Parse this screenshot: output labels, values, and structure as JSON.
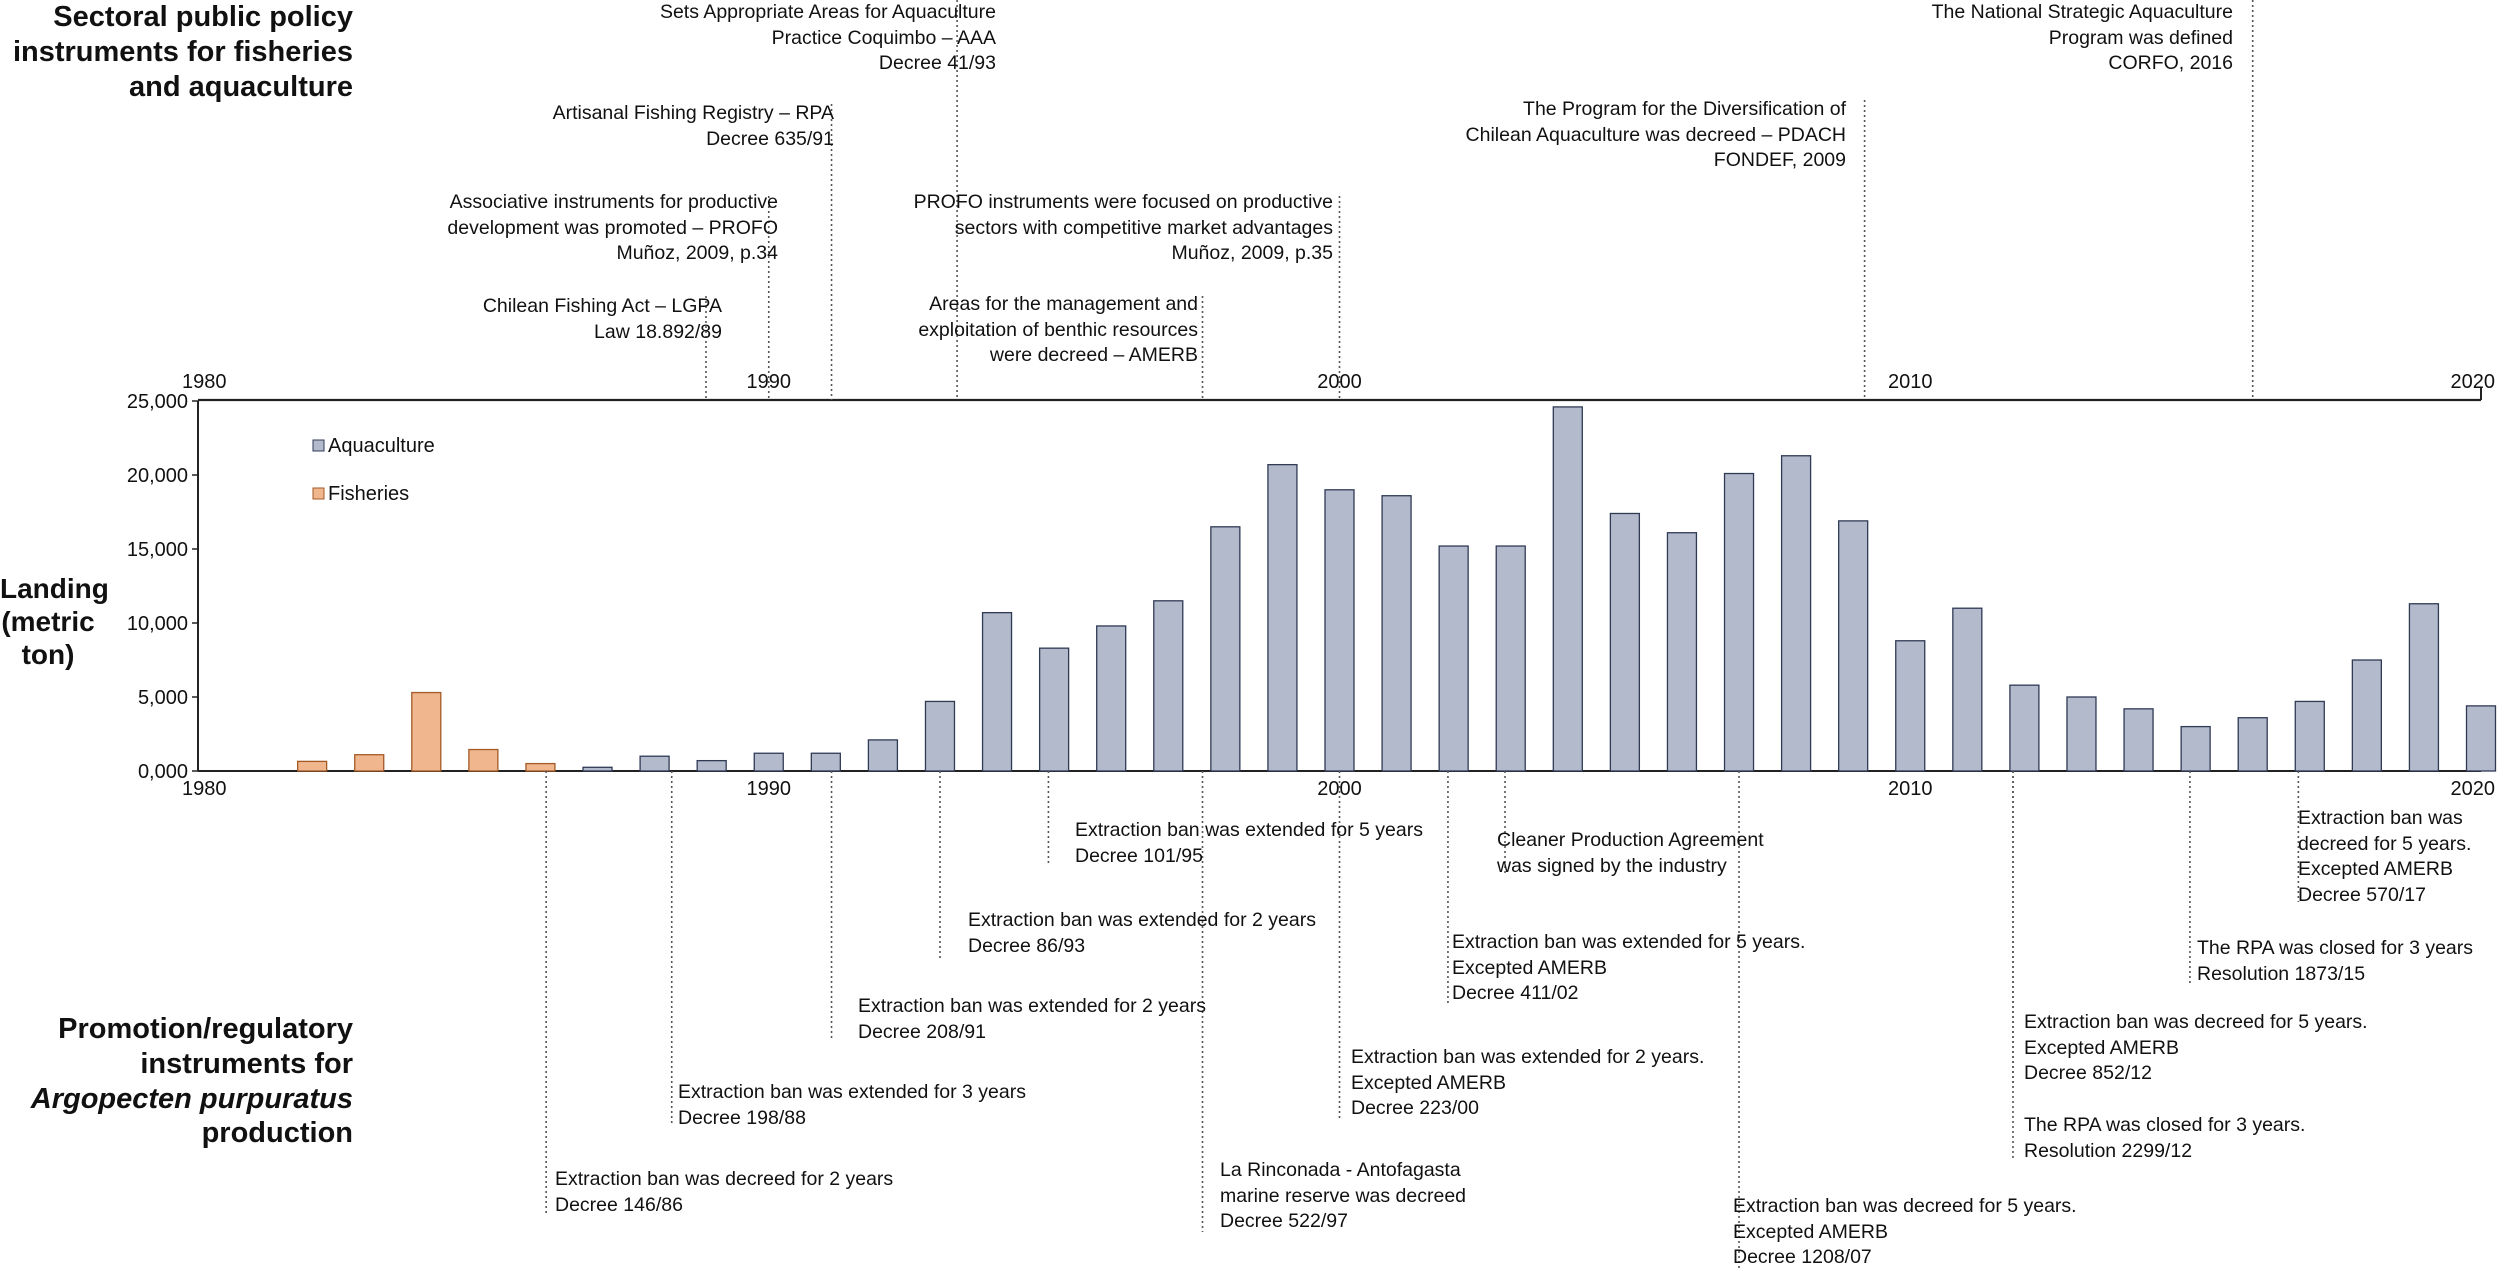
{
  "titles": {
    "top": [
      "Sectoral public policy",
      "instruments for fisheries",
      "and aquaculture"
    ],
    "bottom_lines": [
      "Promotion/regulatory",
      "instruments for"
    ],
    "bottom_italic": "Argopecten purpuratus",
    "bottom_last": "production"
  },
  "chart_data": {
    "type": "bar",
    "title": "",
    "xlabel": "",
    "ylabel": "Landing (metric ton)",
    "ylabel_lines": [
      "Landing",
      "(metric",
      "ton)"
    ],
    "xlim": [
      1980,
      2020
    ],
    "ylim": [
      0,
      25000
    ],
    "yticks": [
      "0,000",
      "5,000",
      "10,000",
      "15,000",
      "20,000",
      "25,000"
    ],
    "xticks": [
      "1980",
      "1990",
      "2000",
      "2010",
      "2020"
    ],
    "legend_position": "top-left",
    "series": [
      {
        "name": "Aquaculture",
        "color": "#b3bacb",
        "x": [
          1987,
          1988,
          1989,
          1990,
          1991,
          1992,
          1993,
          1994,
          1995,
          1996,
          1997,
          1998,
          1999,
          2000,
          2001,
          2002,
          2003,
          2004,
          2005,
          2006,
          2007,
          2008,
          2009,
          2010,
          2011,
          2012,
          2013,
          2014,
          2015,
          2016,
          2017,
          2018,
          2019,
          2020
        ],
        "values": [
          250,
          1000,
          700,
          1200,
          1200,
          2100,
          4700,
          10700,
          8300,
          9800,
          11500,
          16500,
          20700,
          19000,
          18600,
          15200,
          15200,
          24600,
          17400,
          16100,
          20100,
          21300,
          16900,
          8800,
          11000,
          5800,
          5000,
          4200,
          3000,
          3600,
          4700,
          7500,
          11300,
          4400
        ]
      },
      {
        "name": "Fisheries",
        "color": "#f0b68e",
        "x": [
          1982,
          1983,
          1984,
          1985,
          1986
        ],
        "values": [
          650,
          1100,
          5300,
          1450,
          500
        ]
      }
    ]
  },
  "top_annotations": [
    {
      "lines": [
        "Chilean Fishing Act – LGPA",
        "Law 18.892/89"
      ]
    },
    {
      "lines": [
        "Associative instruments for productive",
        "development was promoted – PROFO",
        "Muñoz, 2009, p.34"
      ]
    },
    {
      "lines": [
        "Artisanal Fishing Registry – RPA",
        "Decree 635/91"
      ]
    },
    {
      "lines": [
        "Sets Appropriate Areas for Aquaculture",
        "Practice Coquimbo – AAA",
        "Decree 41/93"
      ]
    },
    {
      "lines": [
        "Areas for the management and",
        "exploitation of benthic resources",
        "were decreed – AMERB"
      ]
    },
    {
      "lines": [
        "PROFO instruments were focused on productive",
        "sectors with competitive market advantages",
        "Muñoz, 2009, p.35"
      ]
    },
    {
      "lines": [
        "The Program for the Diversification of",
        "Chilean Aquaculture was decreed – PDACH",
        "FONDEF, 2009"
      ]
    },
    {
      "lines": [
        "The National Strategic Aquaculture",
        "Program was defined",
        "CORFO, 2016"
      ]
    }
  ],
  "bottom_annotations": [
    {
      "lines": [
        "Extraction ban was decreed for 2 years",
        "Decree 146/86"
      ]
    },
    {
      "lines": [
        "Extraction ban was extended for 3 years",
        "Decree 198/88"
      ]
    },
    {
      "lines": [
        "Extraction ban was extended for 2 years",
        "Decree 208/91"
      ]
    },
    {
      "lines": [
        "Extraction ban was extended for 2 years",
        "Decree 86/93"
      ]
    },
    {
      "lines": [
        "Extraction ban was extended for 5 years",
        "Decree 101/95"
      ]
    },
    {
      "lines": [
        "La Rinconada - Antofagasta",
        "marine reserve was decreed",
        "Decree 522/97"
      ]
    },
    {
      "lines": [
        "Extraction ban was extended for 2 years.",
        "Excepted AMERB",
        "Decree 223/00"
      ]
    },
    {
      "lines": [
        "Extraction ban was extended for 5 years.",
        "Excepted AMERB",
        "Decree 411/02"
      ]
    },
    {
      "lines": [
        "Cleaner Production Agreement",
        "was signed by the industry"
      ]
    },
    {
      "lines": [
        "Extraction ban was decreed for 5 years.",
        "Excepted AMERB",
        "Decree 1208/07"
      ]
    },
    {
      "lines": [
        "Extraction ban was decreed for 5 years.",
        "Excepted AMERB",
        "Decree 852/12"
      ]
    },
    {
      "lines": [
        "The RPA was closed for 3 years.",
        "Resolution 2299/12"
      ]
    },
    {
      "lines": [
        "The RPA was closed for 3 years",
        "Resolution 1873/15"
      ]
    },
    {
      "lines": [
        "Extraction ban was",
        "decreed for 5 years.",
        "Excepted AMERB",
        "Decree 570/17"
      ]
    }
  ]
}
